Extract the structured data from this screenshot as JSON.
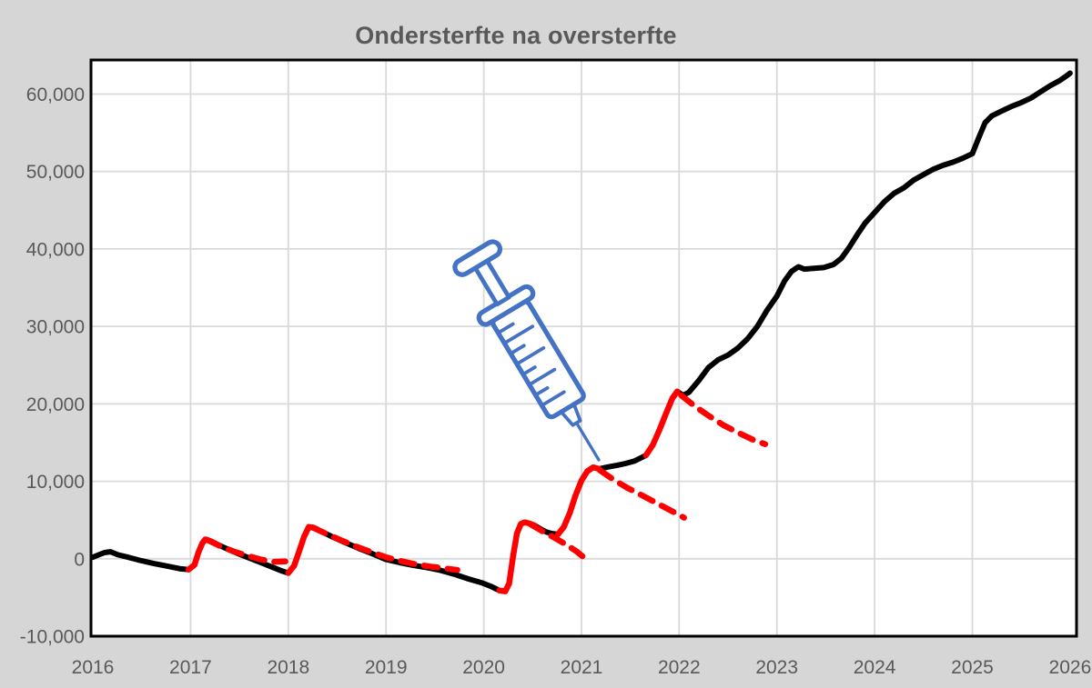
{
  "title": "Ondersterfte na oversterfte",
  "colors": {
    "background": "#d6d6d6",
    "plot_bg": "#ffffff",
    "grid": "#d9d9d9",
    "border": "#000000",
    "actual_line": "#000000",
    "wave_line": "#ff0000",
    "expected_line": "#ff0000",
    "text": "#595959",
    "syringe": "#4472c4"
  },
  "chart_data": {
    "type": "line",
    "title": "Ondersterfte na oversterfte",
    "xlabel": "",
    "ylabel": "",
    "xlim": [
      2016,
      2026.066
    ],
    "ylim": [
      -10000,
      64400
    ],
    "grid": "both",
    "legend": "none",
    "x_ticks": [
      {
        "value": 2016,
        "label": "2016"
      },
      {
        "value": 2017,
        "label": "2017"
      },
      {
        "value": 2018,
        "label": "2018"
      },
      {
        "value": 2019,
        "label": "2019"
      },
      {
        "value": 2020,
        "label": "2020"
      },
      {
        "value": 2021,
        "label": "2021"
      },
      {
        "value": 2022,
        "label": "2022"
      },
      {
        "value": 2023,
        "label": "2023"
      },
      {
        "value": 2024,
        "label": "2024"
      },
      {
        "value": 2025,
        "label": "2025"
      },
      {
        "value": 2026,
        "label": "2026"
      }
    ],
    "y_ticks": [
      {
        "value": -10000,
        "label": "-10,000"
      },
      {
        "value": 0,
        "label": "0"
      },
      {
        "value": 10000,
        "label": "10,000"
      },
      {
        "value": 20000,
        "label": "20,000"
      },
      {
        "value": 30000,
        "label": "30,000"
      },
      {
        "value": 40000,
        "label": "40,000"
      },
      {
        "value": 50000,
        "label": "50,000"
      },
      {
        "value": 60000,
        "label": "60,000"
      }
    ],
    "annotations": [
      {
        "name": "syringe",
        "meaning": "vaccination-start-marker",
        "x": 2021.2,
        "y": 12000
      }
    ],
    "series": [
      {
        "name": "actual-2016",
        "role": "actual",
        "color": "#000000",
        "dash": false,
        "points": [
          [
            2016.0,
            200
          ],
          [
            2016.06,
            500
          ],
          [
            2016.12,
            800
          ],
          [
            2016.18,
            900
          ],
          [
            2016.26,
            500
          ],
          [
            2016.36,
            200
          ],
          [
            2016.48,
            -200
          ],
          [
            2016.62,
            -600
          ],
          [
            2016.78,
            -1000
          ],
          [
            2016.9,
            -1300
          ],
          [
            2016.98,
            -1400
          ]
        ]
      },
      {
        "name": "oversterfte-wave-2017",
        "role": "wave",
        "color": "#ff0000",
        "dash": false,
        "points": [
          [
            2016.98,
            -1400
          ],
          [
            2017.04,
            -800
          ],
          [
            2017.08,
            800
          ],
          [
            2017.12,
            2000
          ],
          [
            2017.15,
            2500
          ],
          [
            2017.2,
            2300
          ],
          [
            2017.25,
            2000
          ]
        ]
      },
      {
        "name": "actual-2017",
        "role": "actual",
        "color": "#000000",
        "dash": false,
        "points": [
          [
            2017.25,
            2000
          ],
          [
            2017.36,
            1350
          ],
          [
            2017.48,
            700
          ],
          [
            2017.6,
            100
          ],
          [
            2017.72,
            -500
          ],
          [
            2017.84,
            -1100
          ],
          [
            2017.94,
            -1600
          ],
          [
            2018.0,
            -1850
          ]
        ]
      },
      {
        "name": "ondersterfte-expected-2017",
        "role": "expected",
        "color": "#ff0000",
        "dash": true,
        "points": [
          [
            2017.17,
            2450
          ],
          [
            2017.3,
            1650
          ],
          [
            2017.44,
            950
          ],
          [
            2017.58,
            400
          ],
          [
            2017.72,
            -100
          ],
          [
            2017.85,
            -400
          ],
          [
            2017.97,
            -350
          ]
        ]
      },
      {
        "name": "oversterfte-wave-2018",
        "role": "wave",
        "color": "#ff0000",
        "dash": false,
        "points": [
          [
            2018.0,
            -1850
          ],
          [
            2018.06,
            -900
          ],
          [
            2018.11,
            900
          ],
          [
            2018.16,
            2800
          ],
          [
            2018.21,
            4100
          ],
          [
            2018.26,
            4000
          ],
          [
            2018.31,
            3700
          ]
        ]
      },
      {
        "name": "actual-2018-2020",
        "role": "actual",
        "color": "#000000",
        "dash": false,
        "points": [
          [
            2018.31,
            3700
          ],
          [
            2018.44,
            2900
          ],
          [
            2018.58,
            2100
          ],
          [
            2018.72,
            1350
          ],
          [
            2018.86,
            650
          ],
          [
            2019.0,
            -100
          ],
          [
            2019.14,
            -500
          ],
          [
            2019.28,
            -850
          ],
          [
            2019.42,
            -1150
          ],
          [
            2019.56,
            -1500
          ],
          [
            2019.7,
            -2000
          ],
          [
            2019.84,
            -2600
          ],
          [
            2019.98,
            -3100
          ],
          [
            2020.08,
            -3600
          ],
          [
            2020.16,
            -4100
          ]
        ]
      },
      {
        "name": "ondersterfte-expected-2018",
        "role": "expected",
        "color": "#ff0000",
        "dash": true,
        "points": [
          [
            2018.25,
            4050
          ],
          [
            2018.4,
            3150
          ],
          [
            2018.55,
            2350
          ],
          [
            2018.7,
            1550
          ],
          [
            2018.85,
            850
          ],
          [
            2019.0,
            200
          ],
          [
            2019.15,
            -300
          ],
          [
            2019.3,
            -700
          ],
          [
            2019.45,
            -1000
          ],
          [
            2019.6,
            -1250
          ],
          [
            2019.73,
            -1450
          ]
        ]
      },
      {
        "name": "oversterfte-wave-2020-spring",
        "role": "wave",
        "color": "#ff0000",
        "dash": false,
        "points": [
          [
            2020.16,
            -4100
          ],
          [
            2020.22,
            -4200
          ],
          [
            2020.26,
            -3200
          ],
          [
            2020.3,
            300
          ],
          [
            2020.34,
            3300
          ],
          [
            2020.38,
            4500
          ],
          [
            2020.42,
            4700
          ],
          [
            2020.47,
            4550
          ],
          [
            2020.52,
            4300
          ]
        ]
      },
      {
        "name": "actual-2020-summer",
        "role": "actual",
        "color": "#000000",
        "dash": false,
        "points": [
          [
            2020.52,
            4300
          ],
          [
            2020.58,
            3850
          ],
          [
            2020.64,
            3450
          ],
          [
            2020.7,
            3250
          ],
          [
            2020.76,
            3150
          ]
        ]
      },
      {
        "name": "ondersterfte-expected-2020-spring",
        "role": "expected",
        "color": "#ff0000",
        "dash": true,
        "points": [
          [
            2020.48,
            4450
          ],
          [
            2020.6,
            3550
          ],
          [
            2020.72,
            2750
          ],
          [
            2020.84,
            1850
          ],
          [
            2020.95,
            950
          ],
          [
            2021.04,
            0
          ],
          [
            2021.09,
            -400
          ]
        ]
      },
      {
        "name": "oversterfte-wave-2020-winter",
        "role": "wave",
        "color": "#ff0000",
        "dash": false,
        "points": [
          [
            2020.76,
            3150
          ],
          [
            2020.82,
            4100
          ],
          [
            2020.88,
            5900
          ],
          [
            2020.94,
            8200
          ],
          [
            2021.0,
            10100
          ],
          [
            2021.06,
            11300
          ],
          [
            2021.12,
            11800
          ],
          [
            2021.18,
            11600
          ]
        ]
      },
      {
        "name": "actual-2021",
        "role": "actual",
        "color": "#000000",
        "dash": false,
        "points": [
          [
            2021.18,
            11600
          ],
          [
            2021.27,
            11850
          ],
          [
            2021.36,
            12050
          ],
          [
            2021.45,
            12300
          ],
          [
            2021.54,
            12600
          ],
          [
            2021.62,
            13100
          ],
          [
            2021.66,
            13350
          ]
        ]
      },
      {
        "name": "ondersterfte-expected-2020-winter",
        "role": "expected",
        "color": "#ff0000",
        "dash": true,
        "points": [
          [
            2021.19,
            11400
          ],
          [
            2021.33,
            10200
          ],
          [
            2021.47,
            9150
          ],
          [
            2021.61,
            8250
          ],
          [
            2021.76,
            7250
          ],
          [
            2021.91,
            6250
          ],
          [
            2022.05,
            5300
          ]
        ]
      },
      {
        "name": "oversterfte-wave-2021-winter",
        "role": "wave",
        "color": "#ff0000",
        "dash": false,
        "points": [
          [
            2021.66,
            13350
          ],
          [
            2021.73,
            14700
          ],
          [
            2021.8,
            16700
          ],
          [
            2021.87,
            18900
          ],
          [
            2021.93,
            20700
          ],
          [
            2021.98,
            21600
          ]
        ]
      },
      {
        "name": "actual-2022-2026",
        "role": "actual",
        "color": "#000000",
        "dash": false,
        "points": [
          [
            2021.98,
            21600
          ],
          [
            2022.04,
            21100
          ],
          [
            2022.1,
            21500
          ],
          [
            2022.2,
            23000
          ],
          [
            2022.3,
            24700
          ],
          [
            2022.4,
            25700
          ],
          [
            2022.5,
            26300
          ],
          [
            2022.6,
            27200
          ],
          [
            2022.7,
            28400
          ],
          [
            2022.8,
            30000
          ],
          [
            2022.9,
            32100
          ],
          [
            2023.0,
            33900
          ],
          [
            2023.08,
            35900
          ],
          [
            2023.15,
            37100
          ],
          [
            2023.22,
            37700
          ],
          [
            2023.28,
            37400
          ],
          [
            2023.38,
            37500
          ],
          [
            2023.48,
            37600
          ],
          [
            2023.58,
            38000
          ],
          [
            2023.66,
            38800
          ],
          [
            2023.74,
            40200
          ],
          [
            2023.82,
            41800
          ],
          [
            2023.9,
            43300
          ],
          [
            2024.0,
            44700
          ],
          [
            2024.1,
            46100
          ],
          [
            2024.2,
            47200
          ],
          [
            2024.3,
            47900
          ],
          [
            2024.4,
            48900
          ],
          [
            2024.5,
            49600
          ],
          [
            2024.6,
            50300
          ],
          [
            2024.7,
            50800
          ],
          [
            2024.8,
            51200
          ],
          [
            2024.9,
            51700
          ],
          [
            2025.0,
            52300
          ],
          [
            2025.06,
            54200
          ],
          [
            2025.13,
            56300
          ],
          [
            2025.2,
            57200
          ],
          [
            2025.3,
            57800
          ],
          [
            2025.4,
            58400
          ],
          [
            2025.5,
            58900
          ],
          [
            2025.6,
            59500
          ],
          [
            2025.7,
            60300
          ],
          [
            2025.8,
            61100
          ],
          [
            2025.9,
            61800
          ],
          [
            2025.97,
            62400
          ],
          [
            2026.0,
            62700
          ]
        ]
      },
      {
        "name": "ondersterfte-expected-2021-winter",
        "role": "expected",
        "color": "#ff0000",
        "dash": true,
        "points": [
          [
            2022.02,
            21100
          ],
          [
            2022.16,
            19700
          ],
          [
            2022.31,
            18400
          ],
          [
            2022.46,
            17200
          ],
          [
            2022.6,
            16300
          ],
          [
            2022.75,
            15400
          ],
          [
            2022.88,
            14800
          ]
        ]
      }
    ]
  }
}
